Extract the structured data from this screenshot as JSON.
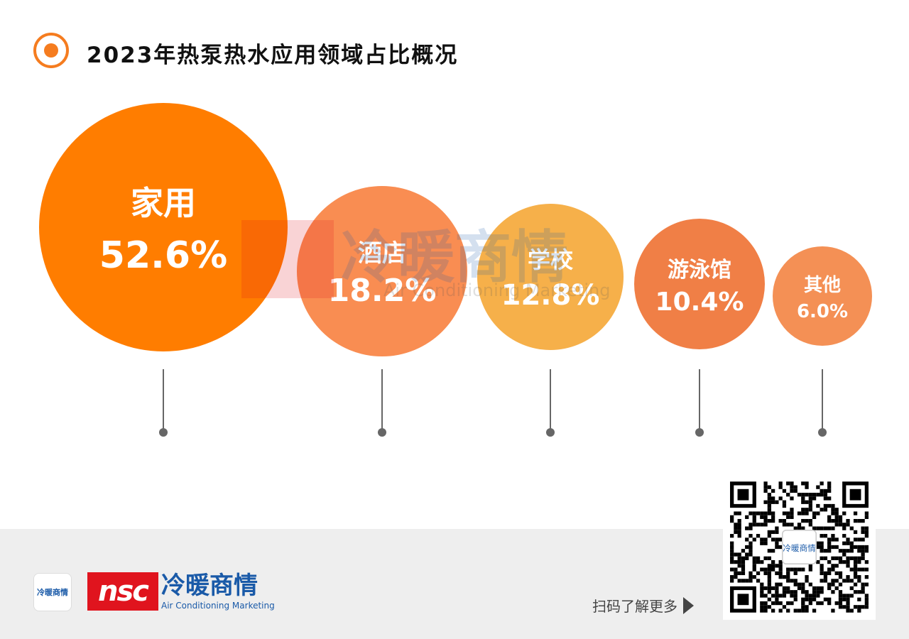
{
  "title": "2023年热泵热水应用领域占比概况",
  "chart_data": {
    "type": "bubble",
    "title": "2023年热泵热水应用领域占比概况",
    "unit": "%",
    "categories": [
      "家用",
      "酒店",
      "学校",
      "游泳馆",
      "其他"
    ],
    "values": [
      52.6,
      18.2,
      12.8,
      10.4,
      6.0
    ],
    "labels": [
      "52.6%",
      "18.2%",
      "12.8%",
      "10.4%",
      "6.0%"
    ],
    "colors": [
      "#ff7d00",
      "#f98d52",
      "#f6b04a",
      "#f07f46",
      "#f49055"
    ]
  },
  "watermark": {
    "cn": "冷暖商情",
    "en": "Air Conditioning Marketing"
  },
  "footer": {
    "logo_mark": "nsc",
    "logo_cn": "冷暖商情",
    "logo_en": "Air Conditioning Marketing",
    "app_icon_text": "冷暖商情",
    "scan_text": "扫码了解更多"
  }
}
